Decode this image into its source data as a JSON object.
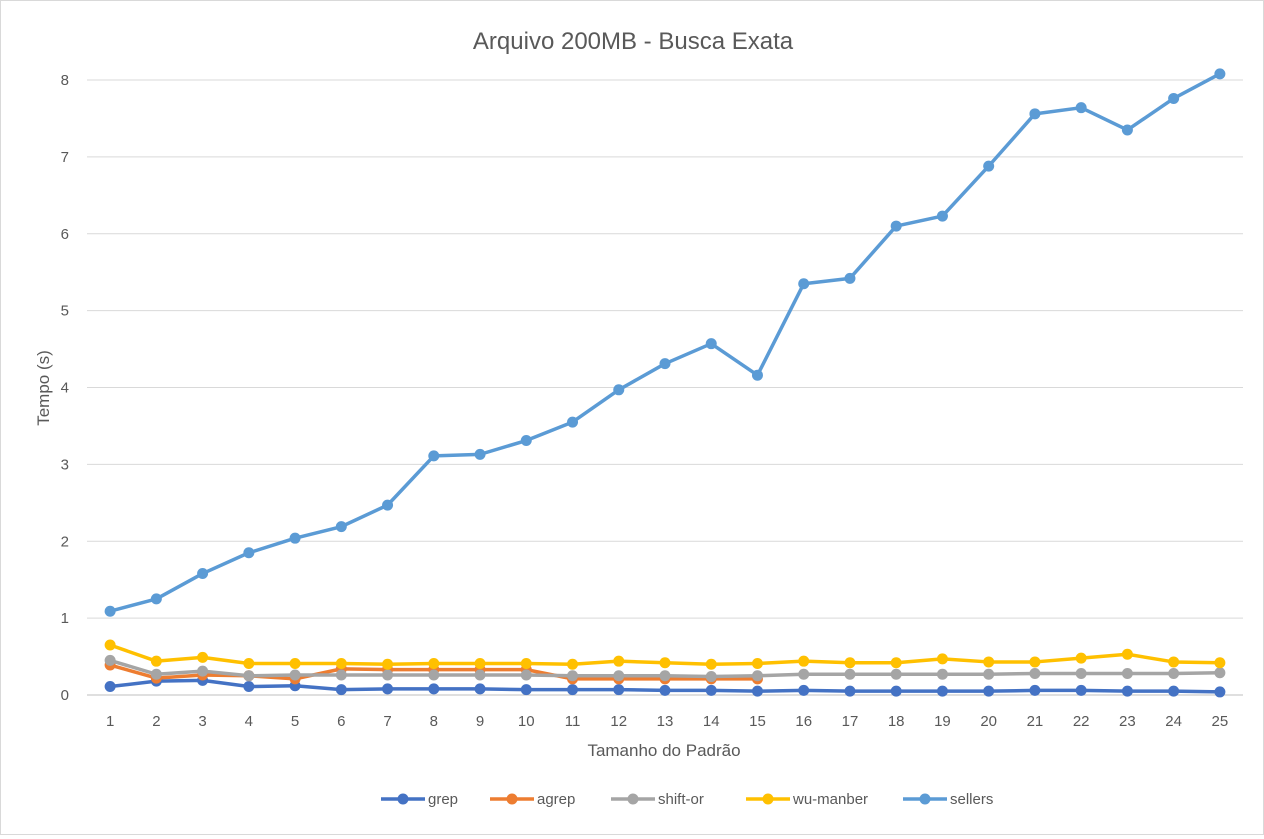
{
  "chart_data": {
    "type": "line",
    "title": "Arquivo 200MB - Busca Exata",
    "xlabel": "Tamanho do Padrão",
    "ylabel": "Tempo (s)",
    "ylim": [
      0,
      8
    ],
    "yticks": [
      0,
      1,
      2,
      3,
      4,
      5,
      6,
      7,
      8
    ],
    "x": [
      1,
      2,
      3,
      4,
      5,
      6,
      7,
      8,
      9,
      10,
      11,
      12,
      13,
      14,
      15,
      16,
      17,
      18,
      19,
      20,
      21,
      22,
      23,
      24,
      25
    ],
    "grid": "horizontal",
    "legend_position": "bottom",
    "series": [
      {
        "name": "grep",
        "color": "#4472c4",
        "values": [
          0.11,
          0.18,
          0.19,
          0.11,
          0.12,
          0.07,
          0.08,
          0.08,
          0.08,
          0.07,
          0.07,
          0.07,
          0.06,
          0.06,
          0.05,
          0.06,
          0.05,
          0.05,
          0.05,
          0.05,
          0.06,
          0.06,
          0.05,
          0.05,
          0.04
        ]
      },
      {
        "name": "agrep",
        "color": "#ed7d31",
        "values": [
          0.39,
          0.22,
          0.26,
          0.25,
          0.21,
          0.34,
          0.33,
          0.33,
          0.33,
          0.33,
          0.21,
          0.21,
          0.21,
          0.21,
          0.21,
          null,
          null,
          null,
          null,
          null,
          null,
          null,
          null,
          null,
          null
        ]
      },
      {
        "name": "shift-or",
        "color": "#a5a5a5",
        "values": [
          0.45,
          0.27,
          0.31,
          0.25,
          0.26,
          0.26,
          0.26,
          0.26,
          0.26,
          0.26,
          0.25,
          0.25,
          0.25,
          0.24,
          0.25,
          0.27,
          0.27,
          0.27,
          0.27,
          0.27,
          0.28,
          0.28,
          0.28,
          0.28,
          0.29
        ]
      },
      {
        "name": "wu-manber",
        "color": "#ffc000",
        "values": [
          0.65,
          0.44,
          0.49,
          0.41,
          0.41,
          0.41,
          0.4,
          0.41,
          0.41,
          0.41,
          0.4,
          0.44,
          0.42,
          0.4,
          0.41,
          0.44,
          0.42,
          0.42,
          0.47,
          0.43,
          0.43,
          0.48,
          0.53,
          0.43,
          0.42
        ]
      },
      {
        "name": "sellers",
        "color": "#5b9bd5",
        "values": [
          1.09,
          1.25,
          1.58,
          1.85,
          2.04,
          2.19,
          2.47,
          3.11,
          3.13,
          3.31,
          3.55,
          3.97,
          4.31,
          4.57,
          4.16,
          5.35,
          5.42,
          6.1,
          6.23,
          6.88,
          7.56,
          7.64,
          7.35,
          7.76,
          8.08
        ]
      }
    ]
  }
}
